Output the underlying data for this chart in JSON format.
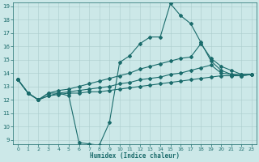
{
  "xlabel": "Humidex (Indice chaleur)",
  "background_color": "#cce8e8",
  "grid_color": "#aacccc",
  "line_color": "#1a6b6b",
  "x": [
    0,
    1,
    2,
    3,
    4,
    5,
    6,
    7,
    8,
    9,
    10,
    11,
    12,
    13,
    14,
    15,
    16,
    17,
    18,
    19,
    20,
    21,
    22,
    23
  ],
  "line1": [
    13.5,
    12.5,
    12.0,
    12.5,
    12.5,
    12.3,
    8.8,
    8.7,
    8.6,
    10.3,
    14.8,
    15.3,
    16.2,
    16.7,
    16.7,
    19.2,
    18.3,
    17.7,
    16.3,
    14.9,
    14.2,
    13.9,
    13.9,
    13.9
  ],
  "line2": [
    13.5,
    12.5,
    12.0,
    12.5,
    12.7,
    12.8,
    13.0,
    13.2,
    13.4,
    13.6,
    13.8,
    14.0,
    14.3,
    14.5,
    14.7,
    14.9,
    15.1,
    15.2,
    16.2,
    15.1,
    14.5,
    14.2,
    13.9,
    13.9
  ],
  "line3": [
    13.5,
    12.5,
    12.0,
    12.3,
    12.5,
    12.6,
    12.7,
    12.8,
    12.9,
    13.0,
    13.2,
    13.3,
    13.5,
    13.6,
    13.7,
    13.9,
    14.0,
    14.2,
    14.4,
    14.6,
    14.0,
    13.9,
    13.8,
    13.9
  ],
  "line4": [
    13.5,
    12.5,
    12.0,
    12.3,
    12.4,
    12.5,
    12.5,
    12.6,
    12.6,
    12.7,
    12.8,
    12.9,
    13.0,
    13.1,
    13.2,
    13.3,
    13.4,
    13.5,
    13.6,
    13.7,
    13.8,
    13.8,
    13.8,
    13.9
  ],
  "xlim": [
    0,
    23
  ],
  "ylim": [
    9,
    19
  ],
  "yticks": [
    9,
    10,
    11,
    12,
    13,
    14,
    15,
    16,
    17,
    18,
    19
  ],
  "xticks": [
    0,
    1,
    2,
    3,
    4,
    5,
    6,
    7,
    8,
    9,
    10,
    11,
    12,
    13,
    14,
    15,
    16,
    17,
    18,
    19,
    20,
    21,
    22,
    23
  ]
}
